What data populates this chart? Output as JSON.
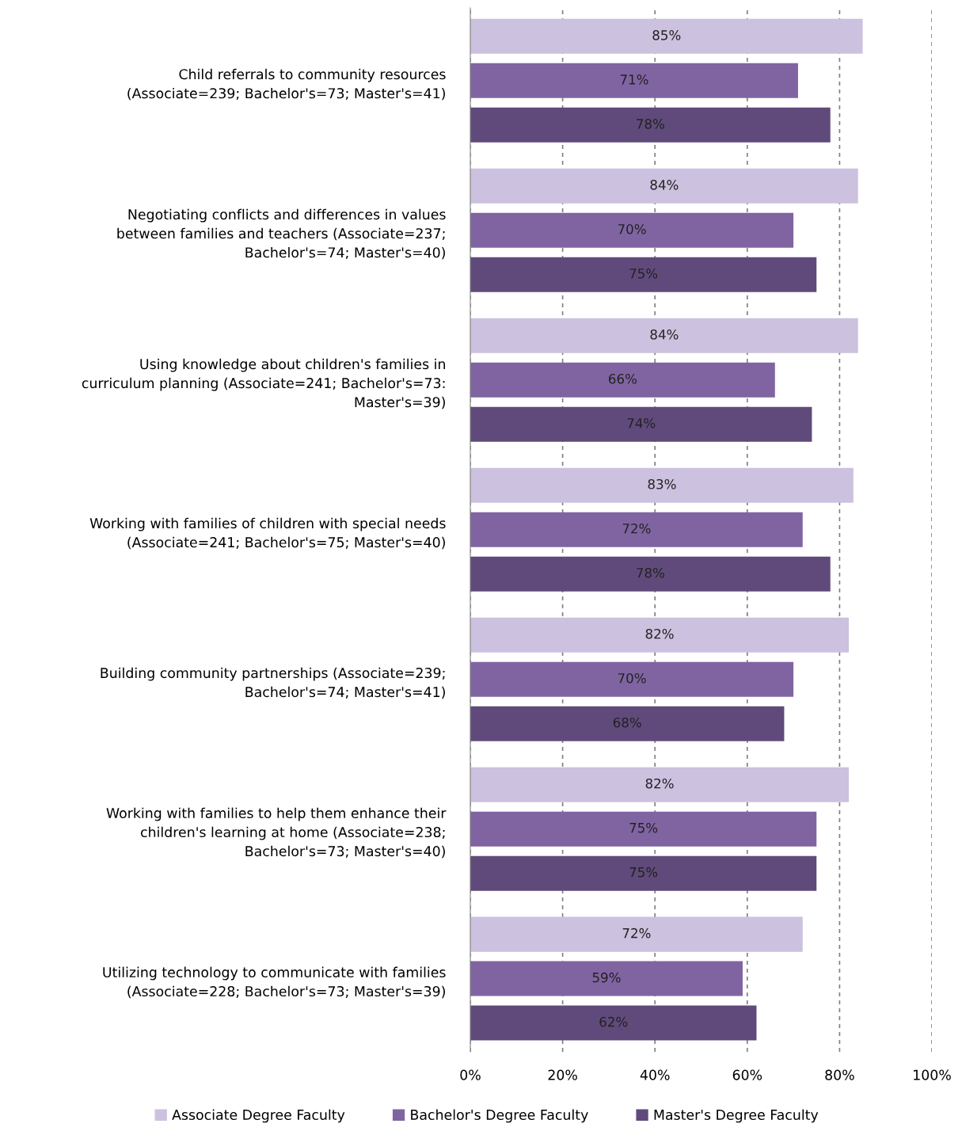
{
  "chart_data": {
    "type": "bar",
    "orientation": "horizontal",
    "categories": [
      "Child referrals to community resources\n(Associate=239; Bachelor's=73; Master's=41)",
      "Negotiating conflicts and differences in values\nbetween families and teachers (Associate=237;\nBachelor's=74; Master's=40)",
      "Using knowledge about children's families in\ncurriculum planning (Associate=241; Bachelor's=73:\nMaster's=39)",
      "Working with families of children with special needs\n(Associate=241; Bachelor's=75; Master's=40)",
      "Building community partnerships (Associate=239;\nBachelor's=74; Master's=41)",
      "Working with families to help them enhance their\nchildren's learning at home (Associate=238;\nBachelor's=73; Master's=40)",
      "Utilizing technology to communicate with families\n(Associate=228; Bachelor's=73; Master's=39)"
    ],
    "series": [
      {
        "name": "Associate Degree Faculty",
        "color": "#ccc1de",
        "values": [
          85,
          84,
          84,
          83,
          82,
          82,
          72
        ],
        "value_labels": [
          "85%",
          "84%",
          "84%",
          "83%",
          "82%",
          "82%",
          "72%"
        ]
      },
      {
        "name": "Bachelor's Degree Faculty",
        "color": "#8064a2",
        "values": [
          71,
          70,
          66,
          72,
          70,
          75,
          59
        ],
        "value_labels": [
          "71%",
          "70%",
          "66%",
          "72%",
          "70%",
          "75%",
          "59%"
        ]
      },
      {
        "name": "Master's Degree Faculty",
        "color": "#604a7b",
        "values": [
          78,
          75,
          74,
          78,
          68,
          75,
          62
        ],
        "value_labels": [
          "78%",
          "75%",
          "74%",
          "78%",
          "68%",
          "75%",
          "62%"
        ]
      }
    ],
    "xlim": [
      0,
      100
    ],
    "xticks": [
      {
        "value": 0,
        "label": "0%"
      },
      {
        "value": 20,
        "label": "20%"
      },
      {
        "value": 40,
        "label": "40%"
      },
      {
        "value": 60,
        "label": "60%"
      },
      {
        "value": 80,
        "label": "80%"
      },
      {
        "value": 100,
        "label": "100%"
      }
    ],
    "grid": "x",
    "legend": "bottom"
  }
}
